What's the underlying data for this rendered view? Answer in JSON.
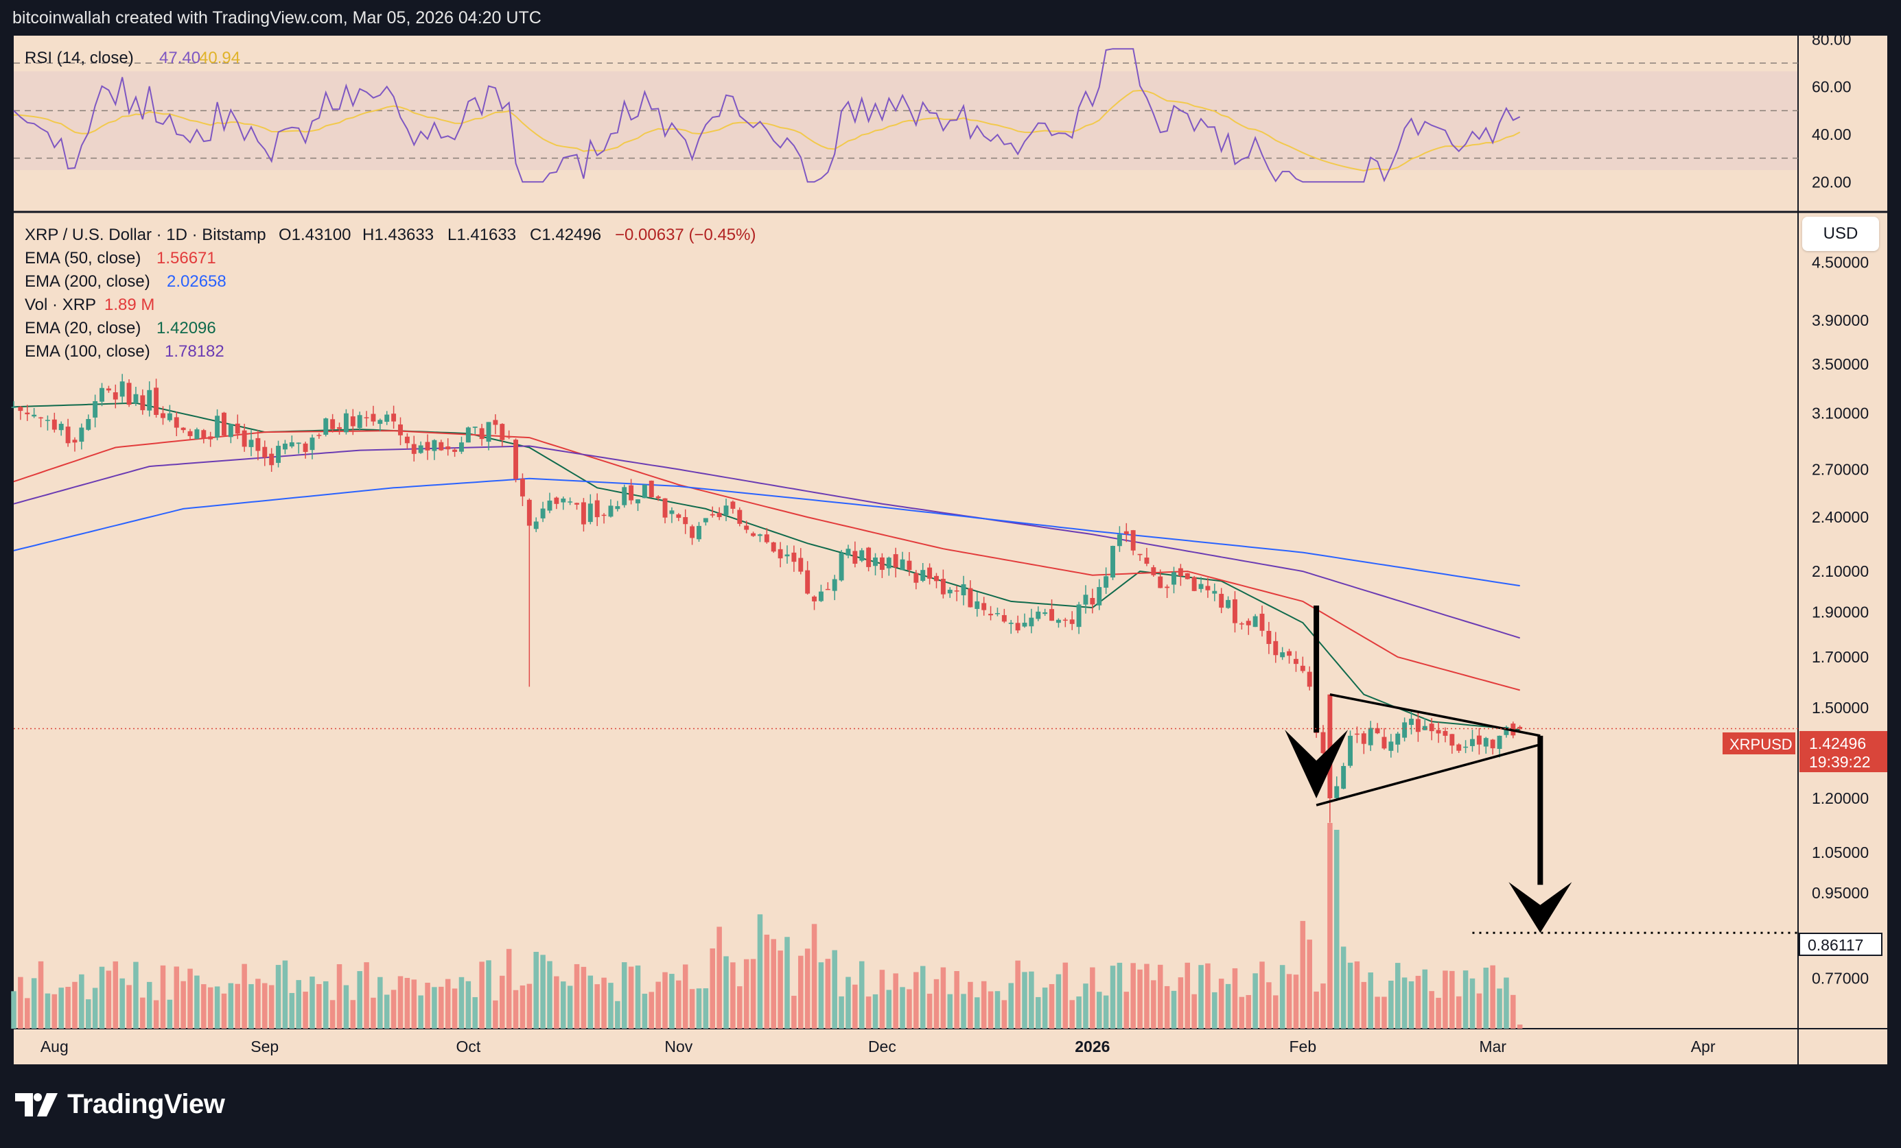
{
  "header": {
    "attribution": "bitcoinwallah created with TradingView.com, Mar 05, 2026 04:20 UTC"
  },
  "footer": {
    "brand": "TradingView"
  },
  "currency_button": "USD",
  "colors": {
    "chart_bg": "#f5dfcb",
    "candle_up": "#3c9d8a",
    "candle_down": "#e04a4a",
    "vol_up": "#7fbfb0",
    "vol_down": "#ef8f86",
    "ema50": "#e23b3b",
    "ema200": "#2962ff",
    "ema20": "#0f6a4c",
    "ema100": "#6a3bb3",
    "rsi": "#7e57c2",
    "rsi_ma": "#f2c94c"
  },
  "rsi_panel": {
    "title": "RSI (14, close)",
    "rsi_value": "47.40",
    "ma_value": "40.94",
    "axis_labels": [
      "80.00",
      "60.00",
      "40.00",
      "20.00"
    ],
    "levels": [
      70,
      50,
      30
    ]
  },
  "legend": {
    "symbol_line": "XRP / U.S. Dollar · 1D · Bitstamp",
    "open": "O1.43100",
    "high": "H1.43633",
    "low": "L1.41633",
    "close": "C1.42496",
    "change": "−0.00637 (−0.45%)",
    "items": [
      {
        "label": "EMA (50, close)",
        "value": "1.56671",
        "color": "#e23b3b"
      },
      {
        "label": "EMA (200, close)",
        "value": "2.02658",
        "color": "#2962ff"
      },
      {
        "label": "Vol · XRP",
        "value": "1.89 M",
        "color": "#e23b3b"
      },
      {
        "label": "EMA (20, close)",
        "value": "1.42096",
        "color": "#0f6a4c"
      },
      {
        "label": "EMA (100, close)",
        "value": "1.78182",
        "color": "#6a3bb3"
      }
    ]
  },
  "price_labels": {
    "symbol_tag": "XRPUSD",
    "last_price": "1.42496",
    "countdown": "19:39:22",
    "target": "0.86117"
  },
  "chart_data": {
    "type": "candlestick",
    "title": "XRP / U.S. Dollar · 1D · Bitstamp",
    "y_scale": "log",
    "ylim": [
      0.68,
      5.0
    ],
    "y_ticks": [
      "4.50000",
      "3.90000",
      "3.50000",
      "3.10000",
      "2.70000",
      "2.40000",
      "2.10000",
      "1.90000",
      "1.70000",
      "1.50000",
      "1.20000",
      "1.05000",
      "0.95000",
      "0.77000"
    ],
    "x_ticks": [
      "Aug",
      "Sep",
      "Oct",
      "Nov",
      "Dec",
      "2026",
      "Feb",
      "Mar",
      "Apr"
    ],
    "x_range": [
      "2025-07-26",
      "2026-04-15"
    ],
    "close_path": [
      [
        "2025-07-26",
        3.15
      ],
      [
        "2025-07-31",
        3.05
      ],
      [
        "2025-08-03",
        2.88
      ],
      [
        "2025-08-08",
        3.3
      ],
      [
        "2025-08-13",
        3.25
      ],
      [
        "2025-08-18",
        3.1
      ],
      [
        "2025-08-22",
        2.98
      ],
      [
        "2025-08-27",
        3.02
      ],
      [
        "2025-09-01",
        2.78
      ],
      [
        "2025-09-08",
        2.92
      ],
      [
        "2025-09-13",
        3.1
      ],
      [
        "2025-09-18",
        3.05
      ],
      [
        "2025-09-22",
        2.88
      ],
      [
        "2025-09-27",
        2.83
      ],
      [
        "2025-10-02",
        3.0
      ],
      [
        "2025-10-07",
        2.92
      ],
      [
        "2025-10-10",
        2.35
      ],
      [
        "2025-10-13",
        2.5
      ],
      [
        "2025-10-20",
        2.4
      ],
      [
        "2025-10-27",
        2.6
      ],
      [
        "2025-11-03",
        2.28
      ],
      [
        "2025-11-09",
        2.45
      ],
      [
        "2025-11-13",
        2.3
      ],
      [
        "2025-11-18",
        2.15
      ],
      [
        "2025-11-21",
        1.95
      ],
      [
        "2025-11-26",
        2.22
      ],
      [
        "2025-12-03",
        2.12
      ],
      [
        "2025-12-09",
        2.05
      ],
      [
        "2025-12-15",
        1.95
      ],
      [
        "2025-12-20",
        1.85
      ],
      [
        "2025-12-28",
        1.86
      ],
      [
        "2026-01-02",
        2.02
      ],
      [
        "2026-01-05",
        2.3
      ],
      [
        "2026-01-10",
        2.08
      ],
      [
        "2026-01-15",
        2.06
      ],
      [
        "2026-01-20",
        1.92
      ],
      [
        "2026-01-25",
        1.88
      ],
      [
        "2026-01-29",
        1.72
      ],
      [
        "2026-02-02",
        1.58
      ],
      [
        "2026-02-05",
        1.2
      ],
      [
        "2026-02-08",
        1.4
      ],
      [
        "2026-02-14",
        1.38
      ],
      [
        "2026-02-17",
        1.46
      ],
      [
        "2026-02-22",
        1.4
      ],
      [
        "2026-02-27",
        1.37
      ],
      [
        "2026-03-02",
        1.4
      ],
      [
        "2026-03-05",
        1.42496
      ]
    ],
    "last_candle": {
      "date": "2026-03-05",
      "open": 1.431,
      "high": 1.43633,
      "low": 1.41633,
      "close": 1.42496
    },
    "ema_series": [
      {
        "name": "EMA (20, close)",
        "points": [
          [
            "2025-07-26",
            3.15
          ],
          [
            "2025-08-13",
            3.18
          ],
          [
            "2025-09-01",
            2.96
          ],
          [
            "2025-09-15",
            2.98
          ],
          [
            "2025-10-01",
            2.95
          ],
          [
            "2025-10-10",
            2.85
          ],
          [
            "2025-10-20",
            2.58
          ],
          [
            "2025-11-05",
            2.45
          ],
          [
            "2025-11-20",
            2.25
          ],
          [
            "2025-12-05",
            2.1
          ],
          [
            "2025-12-20",
            1.95
          ],
          [
            "2026-01-01",
            1.92
          ],
          [
            "2026-01-08",
            2.1
          ],
          [
            "2026-01-20",
            2.05
          ],
          [
            "2026-02-01",
            1.85
          ],
          [
            "2026-02-10",
            1.55
          ],
          [
            "2026-02-20",
            1.45
          ],
          [
            "2026-03-05",
            1.42096
          ]
        ]
      },
      {
        "name": "EMA (50, close)",
        "points": [
          [
            "2025-07-26",
            2.62
          ],
          [
            "2025-08-10",
            2.85
          ],
          [
            "2025-09-01",
            2.96
          ],
          [
            "2025-09-20",
            2.97
          ],
          [
            "2025-10-10",
            2.92
          ],
          [
            "2025-11-01",
            2.6
          ],
          [
            "2025-11-20",
            2.4
          ],
          [
            "2025-12-10",
            2.22
          ],
          [
            "2026-01-01",
            2.08
          ],
          [
            "2026-01-15",
            2.1
          ],
          [
            "2026-02-01",
            1.95
          ],
          [
            "2026-02-15",
            1.7
          ],
          [
            "2026-03-05",
            1.56671
          ]
        ]
      },
      {
        "name": "EMA (100, close)",
        "points": [
          [
            "2025-07-26",
            2.48
          ],
          [
            "2025-08-15",
            2.72
          ],
          [
            "2025-09-15",
            2.83
          ],
          [
            "2025-10-10",
            2.86
          ],
          [
            "2025-11-01",
            2.7
          ],
          [
            "2025-12-01",
            2.48
          ],
          [
            "2026-01-01",
            2.3
          ],
          [
            "2026-02-01",
            2.1
          ],
          [
            "2026-03-05",
            1.78182
          ]
        ]
      },
      {
        "name": "EMA (200, close)",
        "points": [
          [
            "2025-07-26",
            2.21
          ],
          [
            "2025-08-20",
            2.45
          ],
          [
            "2025-09-20",
            2.58
          ],
          [
            "2025-10-10",
            2.64
          ],
          [
            "2025-11-01",
            2.59
          ],
          [
            "2025-12-01",
            2.46
          ],
          [
            "2026-01-01",
            2.32
          ],
          [
            "2026-02-01",
            2.2
          ],
          [
            "2026-03-05",
            2.02658
          ]
        ]
      }
    ],
    "volume": {
      "last": "1.89 M"
    },
    "annotations": {
      "pennant_upper": [
        [
          "2026-02-05",
          1.55
        ],
        [
          "2026-03-08",
          1.4
        ]
      ],
      "pennant_lower": [
        [
          "2026-02-03",
          1.18
        ],
        [
          "2026-03-08",
          1.37
        ]
      ],
      "pole_arrow": [
        [
          "2026-02-03",
          1.93
        ],
        [
          "2026-02-03",
          1.2
        ]
      ],
      "breakdown_arrow": [
        [
          "2026-03-08",
          1.4
        ],
        [
          "2026-03-08",
          0.86117
        ]
      ],
      "target_line": {
        "from": "2026-02-26",
        "value": 0.86117
      }
    }
  }
}
